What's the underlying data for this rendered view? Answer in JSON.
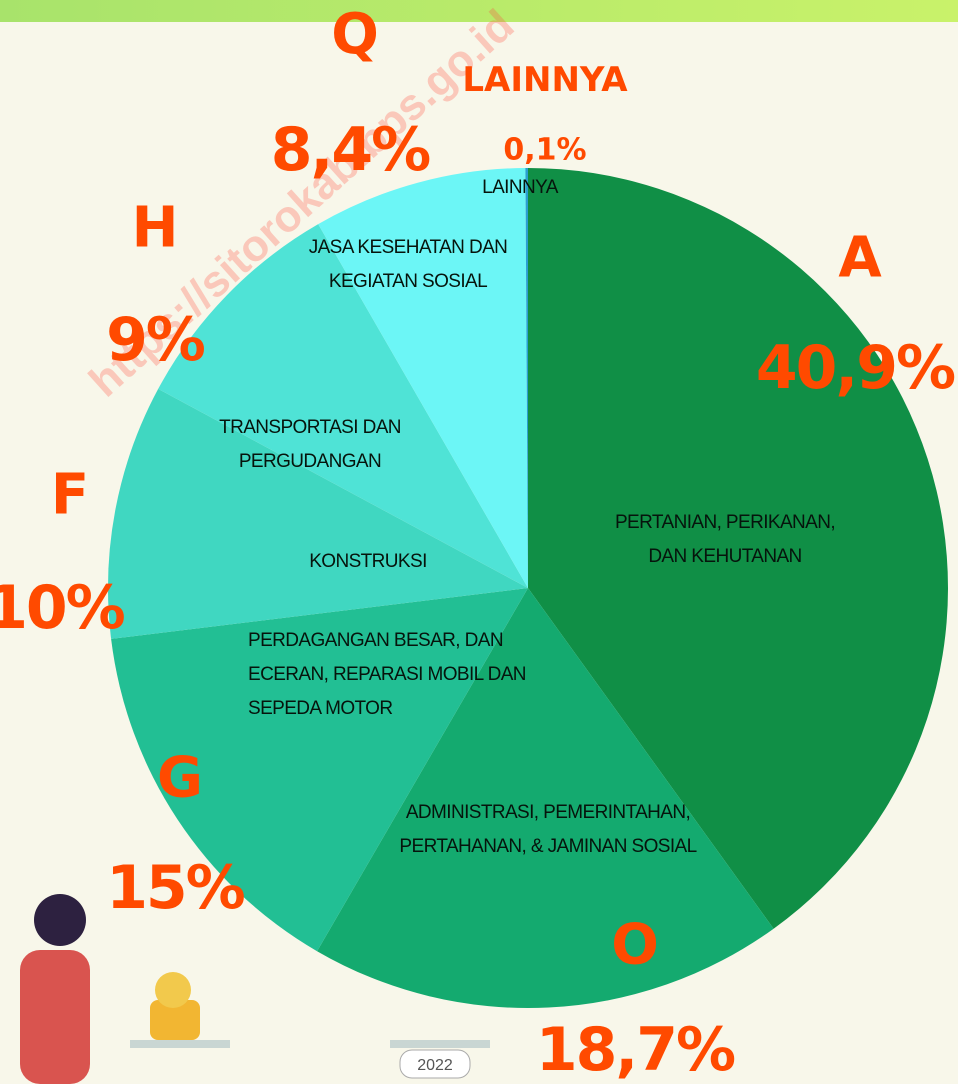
{
  "chart_data": {
    "type": "pie",
    "categories": [
      "PERTANIAN, PERIKANAN, DAN KEHUTANAN",
      "ADMINISTRASI, PEMERINTAHAN, PERTAHANAN, & JAMINAN SOSIAL",
      "PERDAGANGAN BESAR, DAN ECERAN, REPARASI MOBIL DAN SEPEDA MOTOR",
      "KONSTRUKSI",
      "TRANSPORTASI DAN PERGUDANGAN",
      "JASA KESEHATAN DAN KEGIATAN SOSIAL",
      "LAINNYA"
    ],
    "codes": [
      "A",
      "O",
      "G",
      "F",
      "H",
      "Q",
      "LAINNYA"
    ],
    "values": [
      40.9,
      18.7,
      15,
      10,
      9,
      8.4,
      0.1
    ],
    "value_labels": [
      "40,9%",
      "18,7%",
      "15%",
      "10%",
      "9%",
      "8,4%",
      "0,1%"
    ],
    "colors": [
      "#108f46",
      "#14aa6f",
      "#22bf94",
      "#40d7c1",
      "#4fe3d6",
      "#6cf6f6",
      "#2a9fd0"
    ]
  },
  "watermark": "https://sitorokab.bps.go.id",
  "illustration_year": "2022"
}
